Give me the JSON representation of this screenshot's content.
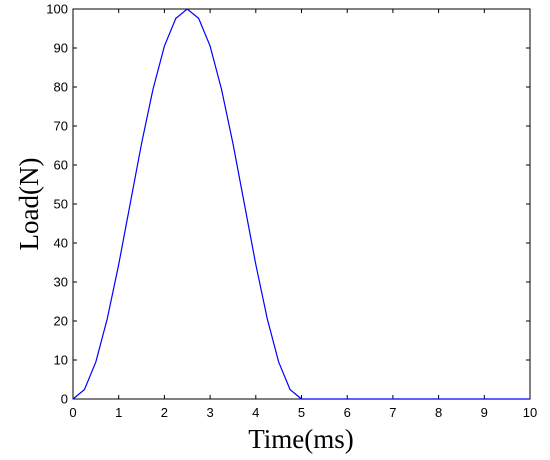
{
  "chart_data": {
    "type": "line",
    "xlabel": "Time(ms)",
    "ylabel": "Load(N)",
    "xlim": [
      0,
      10
    ],
    "ylim": [
      0,
      100
    ],
    "xticks": [
      "0",
      "1",
      "2",
      "3",
      "4",
      "5",
      "6",
      "7",
      "8",
      "9",
      "10"
    ],
    "yticks": [
      "0",
      "10",
      "20",
      "30",
      "40",
      "50",
      "60",
      "70",
      "80",
      "90",
      "100"
    ],
    "grid": false,
    "line_color": "#0000ff",
    "series": [
      {
        "x": [
          0,
          0.25,
          0.5,
          0.75,
          1.0,
          1.25,
          1.5,
          1.75,
          2.0,
          2.25,
          2.5,
          2.75,
          3.0,
          3.25,
          3.5,
          3.75,
          4.0,
          4.25,
          4.5,
          4.75,
          5.0,
          6,
          7,
          8,
          9,
          10
        ],
        "y": [
          0,
          2.4,
          9.5,
          20.6,
          34.5,
          50.0,
          65.5,
          79.4,
          90.5,
          97.6,
          100,
          97.6,
          90.5,
          79.4,
          65.5,
          50.0,
          34.5,
          20.6,
          9.5,
          2.4,
          0,
          0,
          0,
          0,
          0,
          0
        ]
      }
    ]
  }
}
